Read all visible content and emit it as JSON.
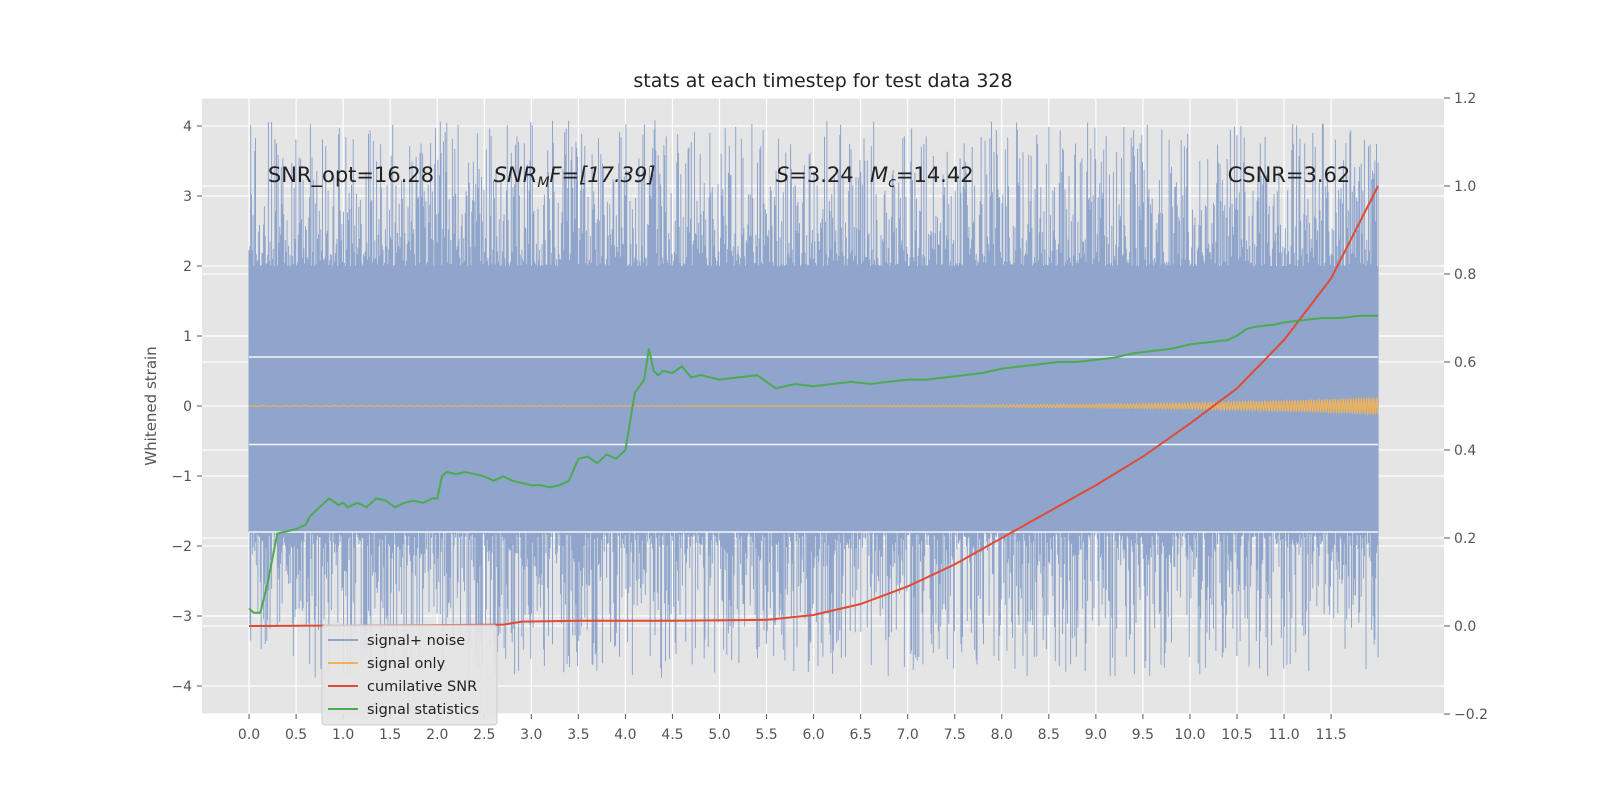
{
  "chart_data": {
    "type": "line",
    "title": "stats at each timestep for test data 328",
    "xlabel": "",
    "ylabel": "Whitened strain",
    "y2label": "",
    "xlim": [
      -0.5,
      12.7
    ],
    "ylim": [
      -4.4,
      4.4
    ],
    "y2lim": [
      -0.2,
      1.2
    ],
    "grid": true,
    "legend_position": "lower-left",
    "xticks": [
      "0.0",
      "0.5",
      "1.0",
      "1.5",
      "2.0",
      "2.5",
      "3.0",
      "3.5",
      "4.0",
      "4.5",
      "5.0",
      "5.5",
      "6.0",
      "6.5",
      "7.0",
      "7.5",
      "8.0",
      "8.5",
      "9.0",
      "9.5",
      "10.0",
      "10.5",
      "11.0",
      "11.5"
    ],
    "yticks": [
      "4",
      "3",
      "2",
      "1",
      "0",
      "−1",
      "−2",
      "−3",
      "−4"
    ],
    "yticks_values": [
      4,
      3,
      2,
      1,
      0,
      -1,
      -2,
      -3,
      -4
    ],
    "y2ticks": [
      "1.2",
      "1.0",
      "0.8",
      "0.6",
      "0.4",
      "0.2",
      "0.0",
      "−0.2"
    ],
    "y2ticks_values": [
      1.2,
      1.0,
      0.8,
      0.6,
      0.4,
      0.2,
      0.0,
      -0.2
    ],
    "annotations": [
      {
        "text": "SNR_opt=16.28",
        "x": 0.2
      },
      {
        "text": "SNR",
        "sub": "M",
        "after": "F=[17.39]",
        "italic": true,
        "x": 2.6
      },
      {
        "text": "S",
        "after": "=3.24",
        "italic": true,
        "x": 5.6
      },
      {
        "text": "M",
        "sub": "c",
        "after": "=14.42",
        "italic": true,
        "x": 6.6
      },
      {
        "text": "CSNR=3.62",
        "x": 10.4
      }
    ],
    "annotation_y": 3.3,
    "series": [
      {
        "name": "signal+ noise",
        "color": "#8fa5cc",
        "axis": "left",
        "style": "noise",
        "x_range": [
          0.0,
          12.0
        ],
        "band": [
          -1.8,
          2.0
        ],
        "min": -3.9,
        "max": 4.08
      },
      {
        "name": "signal only",
        "color": "#eeb35a",
        "axis": "left",
        "style": "chirp",
        "x_range": [
          0.0,
          12.0
        ],
        "amplitude_end": 0.12
      },
      {
        "name": "cumilative SNR",
        "color": "#e24a33",
        "axis": "right",
        "x": [
          0.0,
          1.0,
          2.0,
          2.7,
          2.9,
          3.5,
          4.5,
          5.5,
          6.0,
          6.5,
          7.0,
          7.5,
          8.0,
          8.5,
          9.0,
          9.5,
          10.0,
          10.5,
          11.0,
          11.5,
          12.0
        ],
        "y": [
          0.0,
          0.001,
          0.002,
          0.003,
          0.01,
          0.012,
          0.012,
          0.014,
          0.025,
          0.05,
          0.09,
          0.14,
          0.2,
          0.26,
          0.32,
          0.385,
          0.46,
          0.54,
          0.65,
          0.79,
          1.0
        ]
      },
      {
        "name": "signal statistics",
        "color": "#4daa51",
        "axis": "right",
        "x": [
          0.0,
          0.05,
          0.12,
          0.2,
          0.3,
          0.4,
          0.5,
          0.6,
          0.65,
          0.75,
          0.85,
          0.95,
          1.0,
          1.05,
          1.15,
          1.25,
          1.35,
          1.45,
          1.55,
          1.65,
          1.75,
          1.85,
          1.95,
          2.0,
          2.05,
          2.1,
          2.2,
          2.3,
          2.4,
          2.5,
          2.6,
          2.7,
          2.8,
          2.9,
          3.0,
          3.1,
          3.2,
          3.3,
          3.4,
          3.5,
          3.6,
          3.7,
          3.8,
          3.9,
          4.0,
          4.1,
          4.2,
          4.25,
          4.3,
          4.35,
          4.4,
          4.5,
          4.6,
          4.7,
          4.8,
          5.0,
          5.2,
          5.4,
          5.6,
          5.8,
          6.0,
          6.2,
          6.4,
          6.6,
          6.8,
          7.0,
          7.2,
          7.4,
          7.6,
          7.8,
          8.0,
          8.2,
          8.4,
          8.6,
          8.8,
          9.0,
          9.2,
          9.4,
          9.6,
          9.8,
          10.0,
          10.2,
          10.4,
          10.5,
          10.6,
          10.7,
          10.9,
          11.0,
          11.2,
          11.4,
          11.6,
          11.8,
          12.0
        ],
        "y": [
          0.04,
          0.03,
          0.03,
          0.1,
          0.21,
          0.215,
          0.22,
          0.23,
          0.25,
          0.27,
          0.29,
          0.275,
          0.28,
          0.27,
          0.28,
          0.27,
          0.29,
          0.285,
          0.27,
          0.28,
          0.285,
          0.28,
          0.29,
          0.29,
          0.34,
          0.35,
          0.345,
          0.35,
          0.345,
          0.34,
          0.33,
          0.34,
          0.33,
          0.325,
          0.32,
          0.32,
          0.315,
          0.32,
          0.33,
          0.38,
          0.385,
          0.37,
          0.39,
          0.38,
          0.4,
          0.53,
          0.56,
          0.63,
          0.58,
          0.57,
          0.58,
          0.575,
          0.59,
          0.565,
          0.57,
          0.56,
          0.565,
          0.57,
          0.54,
          0.55,
          0.545,
          0.55,
          0.555,
          0.55,
          0.555,
          0.56,
          0.56,
          0.565,
          0.57,
          0.575,
          0.585,
          0.59,
          0.595,
          0.6,
          0.6,
          0.605,
          0.61,
          0.62,
          0.625,
          0.63,
          0.64,
          0.645,
          0.65,
          0.66,
          0.675,
          0.68,
          0.685,
          0.69,
          0.695,
          0.7,
          0.7,
          0.705,
          0.705
        ]
      }
    ],
    "horizontal_lines_white": [
      0.7,
      -0.55,
      -1.8
    ]
  }
}
